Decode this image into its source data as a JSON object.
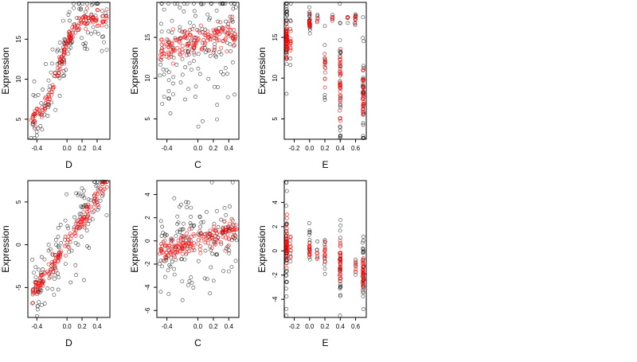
{
  "colors": {
    "observed": "#000000",
    "fitted": "#ff0000",
    "background": "#ffffff"
  },
  "chart_data": [
    {
      "type": "scatter",
      "xlabel": "D",
      "ylabel": "Expression",
      "xlim": [
        -0.52,
        0.57
      ],
      "ylim": [
        2.5,
        19.6
      ],
      "xticks": [
        {
          "v": -0.4,
          "t": "-0.4"
        },
        {
          "v": 0.0,
          "t": "0.0"
        },
        {
          "v": 0.2,
          "t": "0.2"
        },
        {
          "v": 0.4,
          "t": "0.4"
        }
      ],
      "yticks": [
        {
          "v": 5,
          "t": "5"
        },
        {
          "v": 10,
          "t": "10"
        },
        {
          "v": 15,
          "t": "15"
        }
      ],
      "trend": {
        "kind": "sigmoid",
        "lo": 4.5,
        "hi": 17.8,
        "mid": -0.12,
        "slope": 9,
        "noise": 2.2
      },
      "x_support": [
        -0.48,
        0.54
      ],
      "n_points": 140
    },
    {
      "type": "scatter",
      "xlabel": "C",
      "ylabel": "Expression",
      "xlim": [
        -0.53,
        0.53
      ],
      "ylim": [
        2.5,
        19.3
      ],
      "xticks": [
        {
          "v": -0.4,
          "t": "-0.4"
        },
        {
          "v": 0.0,
          "t": "0.0"
        },
        {
          "v": 0.2,
          "t": "0.2"
        },
        {
          "v": 0.4,
          "t": "0.4"
        }
      ],
      "yticks": [
        {
          "v": 5,
          "t": "5"
        },
        {
          "v": 10,
          "t": "10"
        },
        {
          "v": 15,
          "t": "15"
        }
      ],
      "trend": {
        "kind": "linear",
        "a": 14.5,
        "b": 1.8,
        "noise": 4.2
      },
      "x_support": [
        -0.5,
        0.5
      ],
      "n_points": 150
    },
    {
      "type": "scatter",
      "xlabel": "E",
      "ylabel": "Expression",
      "xlim": [
        -0.33,
        0.74
      ],
      "ylim": [
        2.5,
        19.3
      ],
      "xticks": [
        {
          "v": -0.2,
          "t": "-0.2"
        },
        {
          "v": 0.0,
          "t": "0.0"
        },
        {
          "v": 0.2,
          "t": "0.2"
        },
        {
          "v": 0.4,
          "t": "0.4"
        },
        {
          "v": 0.6,
          "t": "0.6"
        }
      ],
      "yticks": [
        {
          "v": 5,
          "t": "5"
        },
        {
          "v": 10,
          "t": "10"
        },
        {
          "v": 15,
          "t": "15"
        }
      ],
      "groups": [
        {
          "x": -0.3,
          "center": 15,
          "spread": 2.8,
          "n": 40
        },
        {
          "x": -0.25,
          "center": 14,
          "spread": 3,
          "n": 8
        },
        {
          "x": 0.0,
          "center": 16.8,
          "spread": 1.2,
          "n": 16
        },
        {
          "x": 0.1,
          "center": 17.3,
          "spread": 0.6,
          "n": 3
        },
        {
          "x": 0.2,
          "center": 12,
          "spread": 4,
          "n": 10
        },
        {
          "x": 0.3,
          "center": 17.5,
          "spread": 0.5,
          "n": 3
        },
        {
          "x": 0.4,
          "center": 9,
          "spread": 5,
          "n": 30
        },
        {
          "x": 0.5,
          "center": 17.5,
          "spread": 0.5,
          "n": 3
        },
        {
          "x": 0.6,
          "center": 17.4,
          "spread": 0.6,
          "n": 6
        },
        {
          "x": 0.7,
          "center": 8,
          "spread": 4.5,
          "n": 30
        }
      ]
    },
    {
      "type": "scatter",
      "xlabel": "D",
      "ylabel": "Expression",
      "xlim": [
        -0.52,
        0.57
      ],
      "ylim": [
        -8.5,
        7.5
      ],
      "xticks": [
        {
          "v": -0.4,
          "t": "-0.4"
        },
        {
          "v": 0.0,
          "t": "0.0"
        },
        {
          "v": 0.2,
          "t": "0.2"
        },
        {
          "v": 0.4,
          "t": "0.4"
        }
      ],
      "yticks": [
        {
          "v": -5,
          "t": "-5"
        },
        {
          "v": 0,
          "t": "0"
        },
        {
          "v": 5,
          "t": "5"
        }
      ],
      "trend": {
        "kind": "linear",
        "a": 0.2,
        "b": 13.2,
        "noise": 2.2
      },
      "x_support": [
        -0.48,
        0.54
      ],
      "n_points": 140
    },
    {
      "type": "scatter",
      "xlabel": "C",
      "ylabel": "Expression",
      "xlim": [
        -0.53,
        0.53
      ],
      "ylim": [
        -6.6,
        5.2
      ],
      "xticks": [
        {
          "v": -0.4,
          "t": "-0.4"
        },
        {
          "v": 0.0,
          "t": "0.0"
        },
        {
          "v": 0.2,
          "t": "0.2"
        },
        {
          "v": 0.4,
          "t": "0.4"
        }
      ],
      "yticks": [
        {
          "v": -6,
          "t": "-6"
        },
        {
          "v": -4,
          "t": "-4"
        },
        {
          "v": -2,
          "t": "-2"
        },
        {
          "v": 0,
          "t": "0"
        },
        {
          "v": 2,
          "t": "2"
        },
        {
          "v": 4,
          "t": "4"
        }
      ],
      "trend": {
        "kind": "linear",
        "a": 0.0,
        "b": 1.8,
        "noise": 2.0
      },
      "x_support": [
        -0.5,
        0.5
      ],
      "n_points": 150
    },
    {
      "type": "scatter",
      "xlabel": "E",
      "ylabel": "Expression",
      "xlim": [
        -0.33,
        0.74
      ],
      "ylim": [
        -5.5,
        5.8
      ],
      "xticks": [
        {
          "v": -0.2,
          "t": "-0.2"
        },
        {
          "v": 0.0,
          "t": "0.0"
        },
        {
          "v": 0.2,
          "t": "0.2"
        },
        {
          "v": 0.4,
          "t": "0.4"
        },
        {
          "v": 0.6,
          "t": "0.6"
        }
      ],
      "yticks": [
        {
          "v": -4,
          "t": "-4"
        },
        {
          "v": -2,
          "t": "-2"
        },
        {
          "v": 0,
          "t": "0"
        },
        {
          "v": 2,
          "t": "2"
        },
        {
          "v": 4,
          "t": "4"
        }
      ],
      "groups": [
        {
          "x": -0.3,
          "center": 0.6,
          "spread": 2.5,
          "n": 40
        },
        {
          "x": -0.25,
          "center": 0.4,
          "spread": 1.2,
          "n": 6
        },
        {
          "x": 0.0,
          "center": 0.1,
          "spread": 1.0,
          "n": 12
        },
        {
          "x": 0.1,
          "center": -0.3,
          "spread": 0.8,
          "n": 4
        },
        {
          "x": 0.2,
          "center": -0.3,
          "spread": 2.0,
          "n": 10
        },
        {
          "x": 0.4,
          "center": -1.0,
          "spread": 2.0,
          "n": 28
        },
        {
          "x": 0.6,
          "center": -1.2,
          "spread": 0.5,
          "n": 5
        },
        {
          "x": 0.7,
          "center": -1.8,
          "spread": 1.6,
          "n": 30
        }
      ]
    }
  ]
}
